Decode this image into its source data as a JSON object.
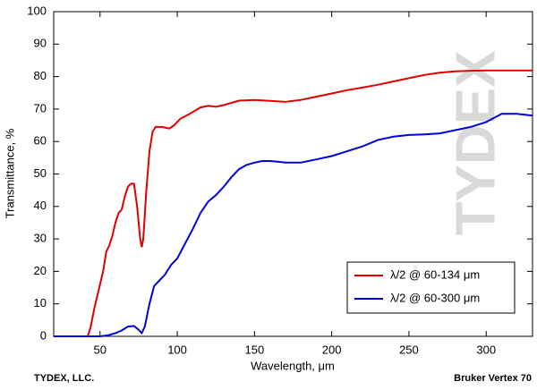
{
  "chart_data": {
    "type": "line",
    "xlabel": "Wavelength, μm",
    "ylabel": "Transmittance, %",
    "footer_left": "TYDEX, LLC.",
    "footer_right": "Bruker Vertex 70",
    "watermark": "TYDEX",
    "xlim": [
      20,
      330
    ],
    "ylim": [
      0,
      100
    ],
    "xticks": [
      50,
      100,
      150,
      200,
      250,
      300
    ],
    "yticks": [
      0,
      10,
      20,
      30,
      40,
      50,
      60,
      70,
      80,
      90,
      100
    ],
    "grid": false,
    "legend": "lower right",
    "series": [
      {
        "name": "λ/2 @ 60-134 μm",
        "color": "#e00000",
        "x": [
          20,
          42,
          44,
          46,
          48,
          50,
          52,
          54,
          56,
          58,
          60,
          62,
          64,
          66,
          68,
          70,
          72,
          74,
          76,
          77,
          78,
          80,
          82,
          84,
          86,
          90,
          95,
          98,
          102,
          108,
          115,
          120,
          125,
          130,
          140,
          150,
          160,
          170,
          180,
          190,
          200,
          210,
          220,
          230,
          240,
          250,
          260,
          270,
          280,
          290,
          300,
          330
        ],
        "values": [
          0,
          0,
          3,
          8,
          12,
          16,
          20,
          26,
          28,
          31,
          35,
          38,
          39,
          43,
          46,
          47,
          47,
          40,
          30,
          27.5,
          30,
          45,
          57,
          63,
          64.5,
          64.5,
          64,
          65,
          67,
          68.5,
          70.5,
          71,
          70.7,
          71.2,
          72.6,
          72.8,
          72.5,
          72.2,
          72.8,
          73.8,
          74.8,
          75.8,
          76.6,
          77.5,
          78.5,
          79.5,
          80.5,
          81.2,
          81.6,
          81.8,
          81.9,
          81.9
        ]
      },
      {
        "name": "λ/2 @ 60-300 μm",
        "color": "#0000e0",
        "x": [
          20,
          50,
          55,
          60,
          64,
          68,
          72,
          75,
          77,
          79,
          82,
          85,
          88,
          92,
          96,
          100,
          105,
          110,
          115,
          120,
          125,
          130,
          135,
          140,
          145,
          150,
          155,
          160,
          165,
          170,
          180,
          190,
          200,
          210,
          220,
          230,
          240,
          250,
          260,
          270,
          280,
          290,
          300,
          310,
          320,
          330
        ],
        "values": [
          0,
          0,
          0.3,
          1,
          1.8,
          3,
          3.2,
          2,
          1,
          3,
          10,
          15.5,
          17,
          19,
          22,
          24,
          28.5,
          33,
          38,
          41.5,
          43.5,
          46,
          49,
          51.5,
          52.8,
          53.5,
          54,
          54,
          53.8,
          53.5,
          53.5,
          54.5,
          55.5,
          57,
          58.5,
          60.5,
          61.5,
          62,
          62.2,
          62.5,
          63.5,
          64.5,
          66,
          68.5,
          68.5,
          68
        ]
      }
    ]
  }
}
